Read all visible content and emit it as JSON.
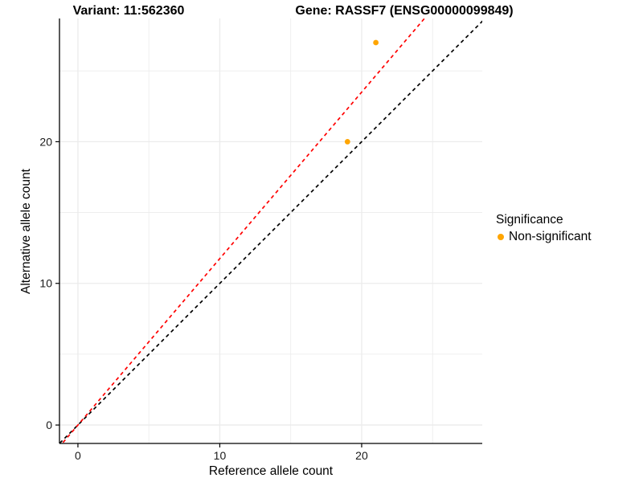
{
  "titles": {
    "variant": "Variant: 11:562360",
    "gene": "Gene: RASSF7 (ENSG00000099849)"
  },
  "chart_data": {
    "type": "scatter",
    "xlabel": "Reference allele count",
    "ylabel": "Alternative allele count",
    "xlim": [
      -1.3,
      28.5
    ],
    "ylim": [
      -1.3,
      28.7
    ],
    "x_major_ticks": [
      0,
      10,
      20
    ],
    "y_major_ticks": [
      0,
      10,
      20
    ],
    "x_minor_ticks": [
      5,
      15,
      25
    ],
    "y_minor_ticks": [
      5,
      15,
      25
    ],
    "grid": true,
    "points": [
      {
        "x": 19,
        "y": 20,
        "significance": "Non-significant"
      },
      {
        "x": 21,
        "y": 27,
        "significance": "Non-significant"
      }
    ],
    "lines": [
      {
        "name": "identity-line",
        "slope": 1.0,
        "intercept": 0,
        "color": "#000000",
        "style": "dashed"
      },
      {
        "name": "fitted-ratio-line",
        "slope": 1.175,
        "intercept": 0,
        "color": "#FF0000",
        "style": "dashed"
      }
    ],
    "colors": {
      "point": "#FFA500",
      "grid": "#EBEBEB",
      "axis": "#000000",
      "tick_label": "#1a1a1a"
    },
    "legend": {
      "position": "right",
      "title": "Significance",
      "items": [
        {
          "label": "Non-significant",
          "color": "#FFA500"
        }
      ]
    }
  }
}
